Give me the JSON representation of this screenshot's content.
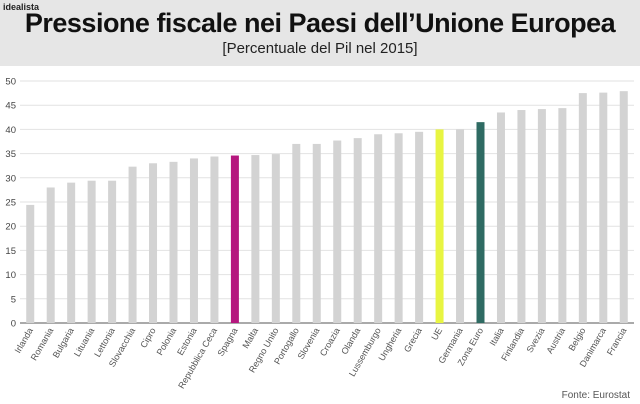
{
  "brand": "idealista",
  "source": "Fonte: Eurostat",
  "colors": {
    "default": "#d3d3d3",
    "Spagna": "#b5177e",
    "UE": "#e8f542",
    "Zona Euro": "#2f6b63"
  },
  "chart_data": {
    "type": "bar",
    "title": "Pressione fiscale nei Paesi dell’Unione Europea",
    "subtitle": "[Percentuale del Pil nel 2015]",
    "xlabel": "",
    "ylabel": "",
    "ylim": [
      0,
      50
    ],
    "yticks": [
      0,
      5,
      10,
      15,
      20,
      25,
      30,
      35,
      40,
      45,
      50
    ],
    "grid": true,
    "categories": [
      "Irlanda",
      "Romania",
      "Bulgaria",
      "Lituania",
      "Lettonia",
      "Slovacchia",
      "Cipro",
      "Polonia",
      "Estonia",
      "Repubblica Ceca",
      "Spagna",
      "Malta",
      "Regno Unito",
      "Portogallo",
      "Slovenia",
      "Croazia",
      "Olanda",
      "Lussemburgo",
      "Ungheria",
      "Grecia",
      "UE",
      "Germania",
      "Zona Euro",
      "Italia",
      "Finlandia",
      "Svezia",
      "Austria",
      "Belgio",
      "Danimarca",
      "Francia"
    ],
    "values": [
      24.4,
      28.0,
      29.0,
      29.4,
      29.4,
      32.3,
      33.0,
      33.3,
      34.0,
      34.4,
      34.6,
      34.7,
      34.9,
      37.0,
      37.0,
      37.7,
      38.2,
      39.0,
      39.2,
      39.5,
      40.0,
      40.0,
      41.5,
      43.5,
      44.0,
      44.2,
      44.4,
      47.5,
      47.6,
      47.9
    ]
  }
}
